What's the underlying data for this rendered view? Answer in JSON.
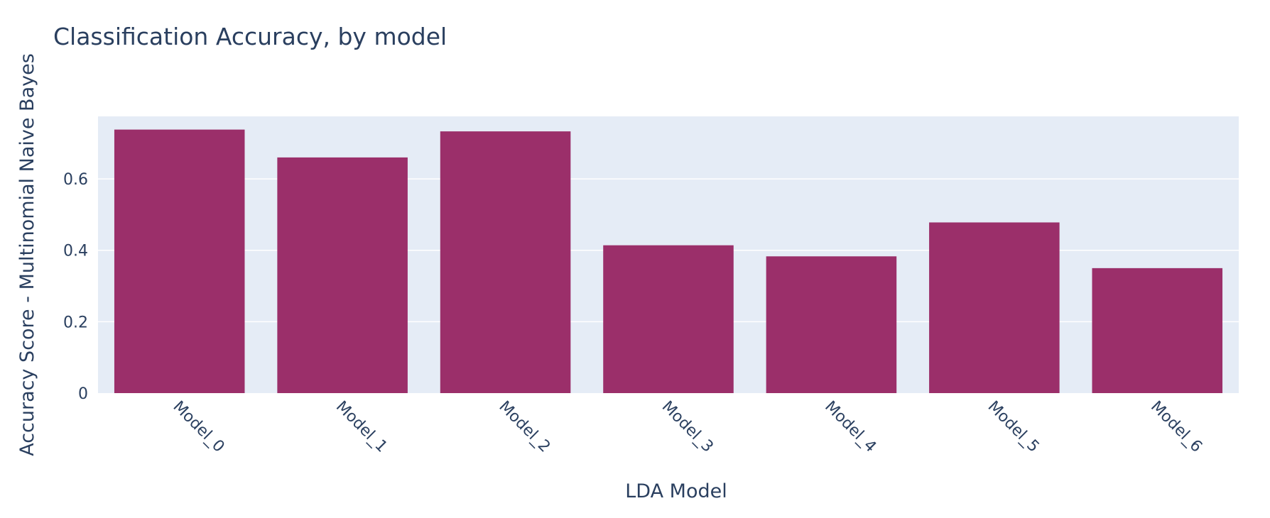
{
  "chart_data": {
    "type": "bar",
    "title": "Classification Accuracy, by model",
    "xlabel": "LDA Model",
    "ylabel": "Accuracy Score - Multinomial Naive Bayes",
    "categories": [
      "Model_0",
      "Model_1",
      "Model_2",
      "Model_3",
      "Model_4",
      "Model_5",
      "Model_6"
    ],
    "values": [
      0.738,
      0.66,
      0.733,
      0.414,
      0.383,
      0.478,
      0.35
    ],
    "ylim": [
      0,
      0.775
    ],
    "yticks": [
      0,
      0.2,
      0.4,
      0.6
    ],
    "ytick_labels": [
      "0",
      "0.2",
      "0.4",
      "0.6"
    ],
    "grid": true,
    "legend": "none",
    "colors": {
      "bar": "#9b2f6a",
      "plot_bg": "#e5ecf6",
      "grid": "#ffffff",
      "text": "#2a3f5f"
    }
  }
}
